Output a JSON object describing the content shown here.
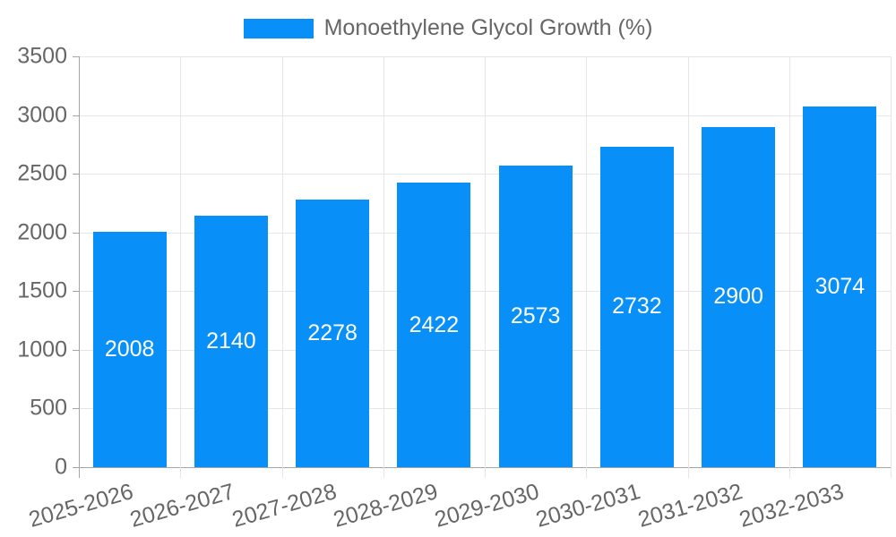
{
  "colors": {
    "background": "#ffffff",
    "bar": "#0890f8",
    "grid_line": "#e6e6e6",
    "axis_line": "#a6a6a6",
    "tick_text": "#666666",
    "legend_text": "#666666",
    "bar_label_text": "#ffffff"
  },
  "chart_data": {
    "type": "bar",
    "title": "",
    "legend": [
      "Monoethylene Glycol Growth (%)"
    ],
    "legend_position": "top-center",
    "categories": [
      "2025-2026",
      "2026-2027",
      "2027-2028",
      "2028-2029",
      "2029-2030",
      "2030-2031",
      "2031-2032",
      "2032-2033"
    ],
    "values": [
      2008,
      2140,
      2278,
      2422,
      2573,
      2732,
      2900,
      3074
    ],
    "xlabel": "",
    "ylabel": "",
    "ylim": [
      0,
      3500
    ],
    "yticks": [
      0,
      500,
      1000,
      1500,
      2000,
      2500,
      3000,
      3500
    ],
    "grid": true,
    "grid_vertical_at_category_boundaries": true,
    "data_labels": {
      "position": "inside-center",
      "color": "#ffffff"
    },
    "x_tick_rotation_deg": -16
  }
}
